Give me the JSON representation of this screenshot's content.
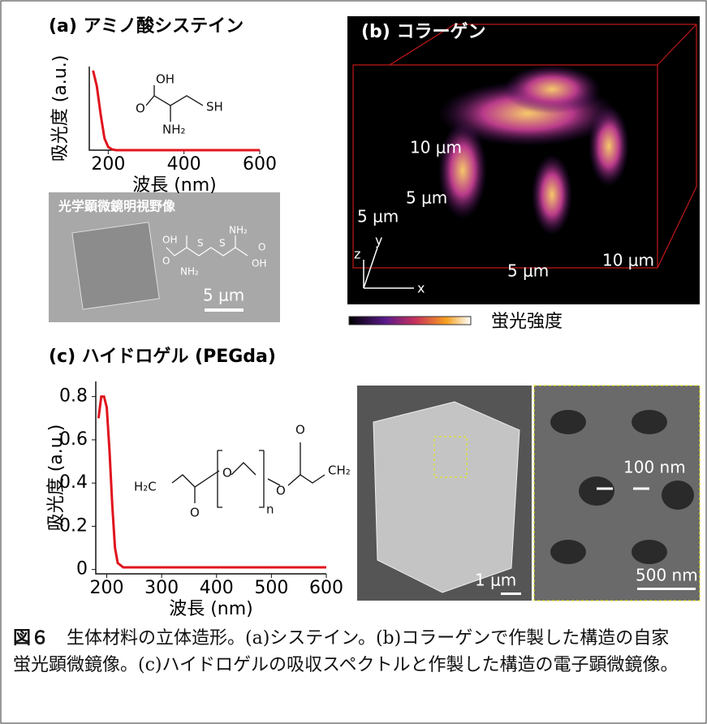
{
  "panel_a": {
    "title": "(a) アミノ酸システイン",
    "structure_labels": [
      "OH",
      "O",
      "SH",
      "NH₂"
    ],
    "image_label": "光学顕微鏡明視野像",
    "image_structure_labels": [
      "OH",
      "O",
      "NH₂",
      "S",
      "S",
      "NH₂",
      "O",
      "OH"
    ],
    "scale_bar": "5 μm"
  },
  "panel_b": {
    "title": "(b) コラーゲン",
    "axis_labels": [
      "10 μm",
      "5 μm",
      "5 μm",
      "5 μm",
      "10 μm"
    ],
    "axes": [
      "z",
      "y",
      "x"
    ],
    "colorbar_label": "蛍光強度"
  },
  "panel_c": {
    "title": "(c) ハイドロゲル (PEGda)",
    "structure_labels": [
      "H₂C",
      "O",
      "O",
      "n",
      "O",
      "O",
      "CH₂"
    ],
    "sem_scale_bars": [
      "1 μm",
      "500 nm"
    ],
    "sem_annotation": "100 nm"
  },
  "chart_data": [
    {
      "type": "line",
      "x_label": "波長 (nm)",
      "y_label": "吸光度 (a.u.)",
      "color": "#e0141e",
      "x": [
        160,
        170,
        180,
        190,
        200,
        210,
        220,
        600
      ],
      "values": [
        1,
        0.8,
        0.45,
        0.15,
        0.04,
        0.01,
        0,
        0
      ],
      "xlim": [
        150,
        600
      ],
      "xticks": [
        200,
        400,
        600
      ],
      "ylim": [
        0,
        1.05
      ]
    },
    {
      "type": "line",
      "x_label": "波長 (nm)",
      "y_label": "吸光度 (a.u.)",
      "color": "#e0141e",
      "x": [
        185,
        190,
        195,
        200,
        205,
        210,
        215,
        220,
        230,
        600
      ],
      "values": [
        0.7,
        0.8,
        0.8,
        0.75,
        0.55,
        0.3,
        0.1,
        0.03,
        0.01,
        0.01
      ],
      "xlim": [
        180,
        600
      ],
      "xticks": [
        200,
        300,
        400,
        500,
        600
      ],
      "ylim": [
        -0.02,
        0.87
      ],
      "yticks": [
        0,
        0.2,
        0.4,
        0.6,
        0.8
      ]
    }
  ],
  "caption": {
    "label": "図６",
    "text": "　生体材料の立体造形。(a)システイン。(b)コラーゲンで作製した構造の自家蛍光顕微鏡像。(c)ハイドロゲルの吸収スペクトルと作製した構造の電子顕微鏡像。"
  }
}
